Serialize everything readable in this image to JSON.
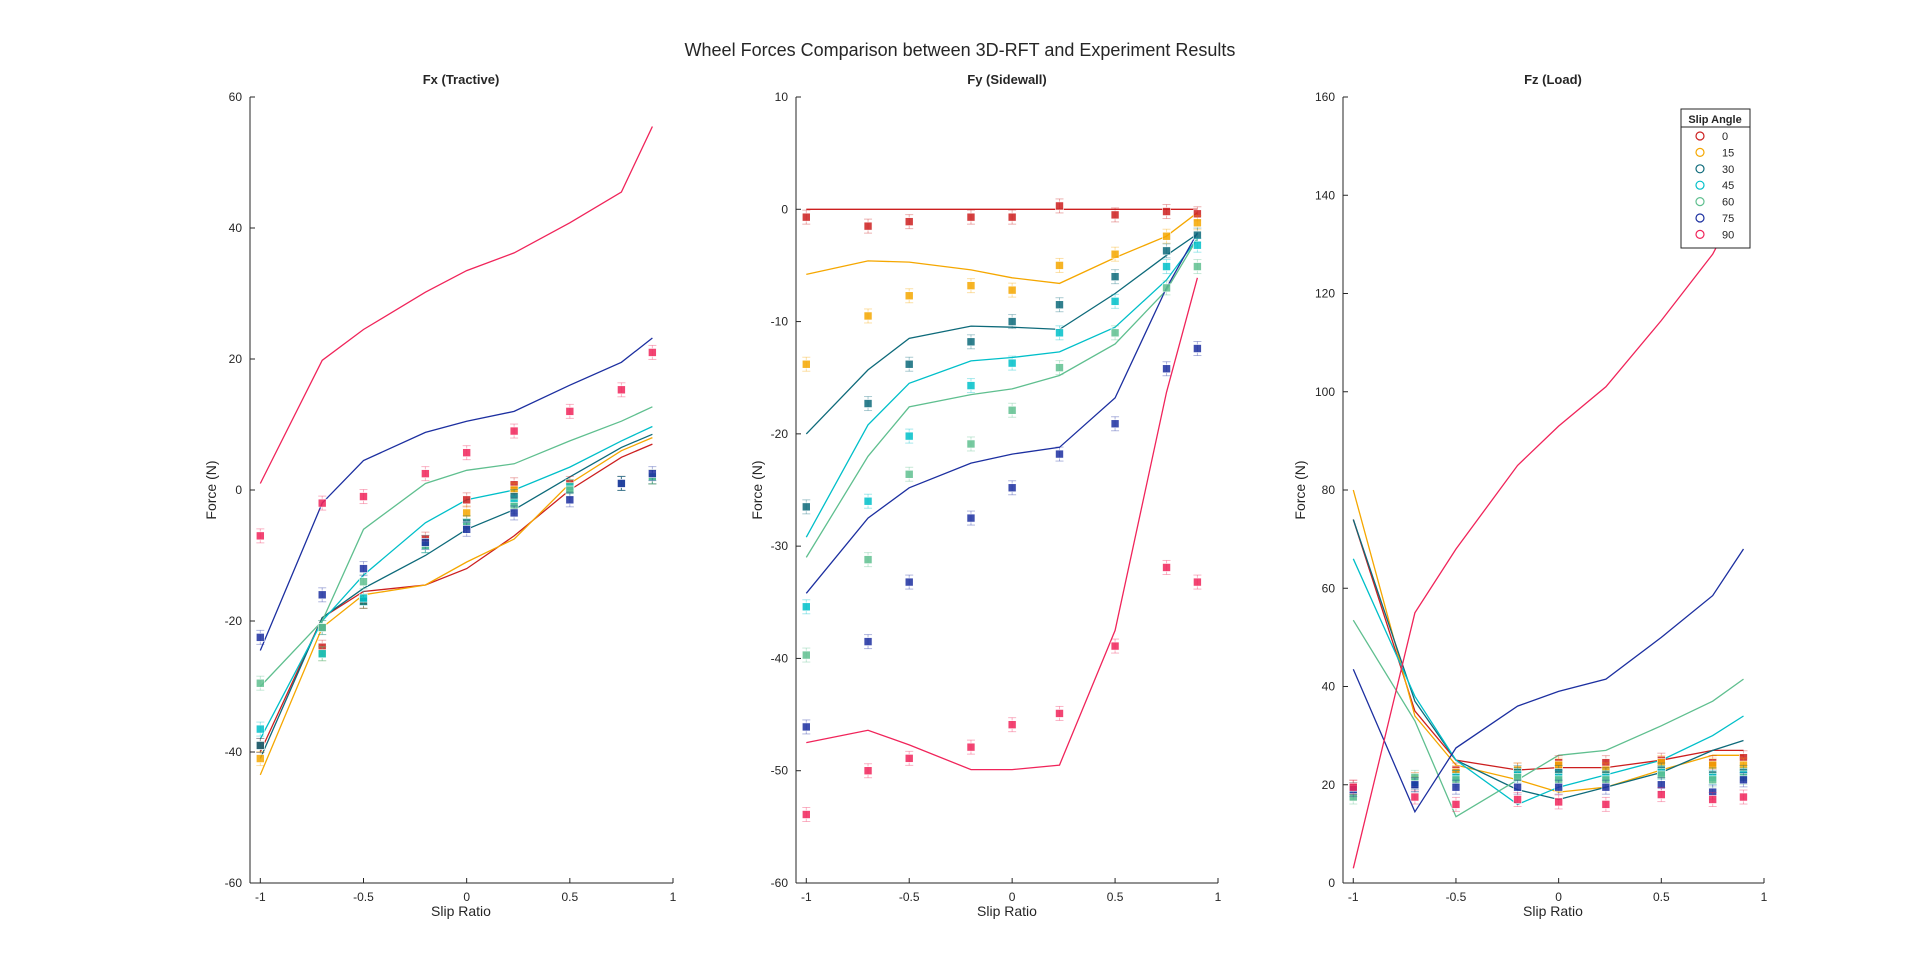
{
  "figure_title": "Wheel Forces Comparison between 3D-RFT and Experiment Results",
  "legend": {
    "title": "Slip Angle",
    "entries": [
      "0",
      "15",
      "30",
      "45",
      "60",
      "75",
      "90"
    ],
    "colors": [
      "#cc1f1f",
      "#f5a700",
      "#0d6a7a",
      "#00bfc9",
      "#5fbf8f",
      "#1c2fa0",
      "#f0245a"
    ],
    "placement": "top-right of third panel"
  },
  "chart_data": [
    {
      "type": "line",
      "title": "Fx (Tractive)",
      "xlabel": "Slip Ratio",
      "ylabel": "Force (N)",
      "xlim": [
        -1.05,
        1
      ],
      "ylim": [
        -60,
        60
      ],
      "xticks": [
        -1,
        -0.5,
        0,
        0.5,
        1
      ],
      "xtick_labels": [
        "-1",
        "-0.5",
        "0",
        "0.5",
        "1"
      ],
      "yticks": [
        -60,
        -40,
        -20,
        0,
        20,
        40,
        60
      ],
      "ytick_labels": [
        "-60",
        "-40",
        "-20",
        "0",
        "20",
        "40",
        "60"
      ],
      "x": [
        -1,
        -0.7,
        -0.5,
        -0.2,
        0,
        0.23,
        0.5,
        0.75,
        0.9
      ],
      "model_series": [
        {
          "name": "0",
          "values": [
            -40,
            -19.5,
            -15.5,
            -14.5,
            -12,
            -7,
            0,
            5,
            7
          ]
        },
        {
          "name": "15",
          "values": [
            -43.5,
            -21,
            -16,
            -14.5,
            -11,
            -7.5,
            1,
            6,
            8
          ]
        },
        {
          "name": "30",
          "values": [
            -41,
            -19.5,
            -15,
            -10,
            -6,
            -3,
            2,
            6.5,
            8.5
          ]
        },
        {
          "name": "45",
          "values": [
            -38,
            -20,
            -13,
            -5,
            -1.5,
            0,
            3.5,
            7.5,
            9.7
          ]
        },
        {
          "name": "60",
          "values": [
            -30,
            -20,
            -6,
            1,
            3,
            4,
            7.5,
            10.5,
            12.7
          ]
        },
        {
          "name": "75",
          "values": [
            -24.5,
            -2,
            4.5,
            8.8,
            10.5,
            12,
            16,
            19.5,
            23.2
          ]
        },
        {
          "name": "90",
          "values": [
            1,
            19.8,
            24.5,
            30.2,
            33.5,
            36.2,
            40.8,
            45.5,
            55.5
          ]
        }
      ],
      "experiment_series": [
        {
          "name": "0",
          "values": [
            -39,
            -24,
            -17,
            -7.5,
            -1.5,
            0.8,
            1,
            1,
            2
          ]
        },
        {
          "name": "15",
          "values": [
            -41,
            -25,
            -17,
            -8,
            -3.5,
            0,
            0.5,
            1,
            2
          ]
        },
        {
          "name": "30",
          "values": [
            -39,
            -21,
            -17,
            -8.5,
            -5,
            -1,
            0,
            1,
            2
          ]
        },
        {
          "name": "45",
          "values": [
            -36.5,
            -25,
            -16.5,
            -8.5,
            -5.5,
            -2,
            0.5,
            1,
            2
          ]
        },
        {
          "name": "60",
          "values": [
            -29.5,
            -21,
            -14,
            -8.5,
            -5.5,
            -2.5,
            0,
            1,
            2
          ]
        },
        {
          "name": "75",
          "values": [
            -22.5,
            -16,
            -12,
            -8,
            -6,
            -3.5,
            -1.5,
            1,
            2.5
          ]
        },
        {
          "name": "90",
          "values": [
            -7,
            -2,
            -1,
            2.5,
            5.7,
            9,
            12,
            15.3,
            21
          ]
        }
      ]
    },
    {
      "type": "line",
      "title": "Fy (Sidewall)",
      "xlabel": "Slip Ratio",
      "ylabel": "Force (N)",
      "xlim": [
        -1.05,
        1
      ],
      "ylim": [
        -60,
        10
      ],
      "xticks": [
        -1,
        -0.5,
        0,
        0.5,
        1
      ],
      "xtick_labels": [
        "-1",
        "-0.5",
        "0",
        "0.5",
        "1"
      ],
      "yticks": [
        -60,
        -50,
        -40,
        -30,
        -20,
        -10,
        0,
        10
      ],
      "ytick_labels": [
        "-60",
        "-50",
        "-40",
        "-30",
        "-20",
        "-10",
        "0",
        "10"
      ],
      "x": [
        -1,
        -0.7,
        -0.5,
        -0.2,
        0,
        0.23,
        0.5,
        0.75,
        0.9
      ],
      "model_series": [
        {
          "name": "0",
          "values": [
            0,
            0,
            0,
            0,
            0,
            0,
            0,
            0,
            0
          ]
        },
        {
          "name": "15",
          "values": [
            -5.8,
            -4.6,
            -4.7,
            -5.4,
            -6.1,
            -6.6,
            -4.3,
            -2.4,
            -0.3
          ]
        },
        {
          "name": "30",
          "values": [
            -20,
            -14.3,
            -11.5,
            -10.4,
            -10.5,
            -10.7,
            -7.5,
            -4.1,
            -2.2
          ]
        },
        {
          "name": "45",
          "values": [
            -29.2,
            -19.2,
            -15.5,
            -13.5,
            -13.2,
            -12.7,
            -10.5,
            -6.3,
            -2.6
          ]
        },
        {
          "name": "60",
          "values": [
            -31,
            -22,
            -17.6,
            -16.5,
            -16,
            -14.8,
            -12,
            -7.2,
            -2.6
          ]
        },
        {
          "name": "75",
          "values": [
            -34.2,
            -27.5,
            -24.8,
            -22.6,
            -21.8,
            -21.2,
            -16.8,
            -7,
            -2.1
          ]
        },
        {
          "name": "90",
          "values": [
            -47.5,
            -46.4,
            -47.7,
            -49.9,
            -49.9,
            -49.5,
            -37.5,
            -16.3,
            -6.1
          ]
        }
      ],
      "experiment_series": [
        {
          "name": "0",
          "values": [
            -0.7,
            -1.5,
            -1.1,
            -0.7,
            -0.7,
            0.3,
            -0.5,
            -0.2,
            -0.4
          ]
        },
        {
          "name": "15",
          "values": [
            -13.8,
            -9.5,
            -7.7,
            -6.8,
            -7.2,
            -5,
            -4,
            -2.4,
            -1.2
          ]
        },
        {
          "name": "30",
          "values": [
            -26.5,
            -17.3,
            -13.8,
            -11.8,
            -10,
            -8.5,
            -6,
            -3.7,
            -2.3
          ]
        },
        {
          "name": "45",
          "values": [
            -35.4,
            -26,
            -20.2,
            -15.7,
            -13.7,
            -11,
            -8.2,
            -5.1,
            -3.2
          ]
        },
        {
          "name": "60",
          "values": [
            -39.7,
            -31.2,
            -23.6,
            -20.9,
            -17.9,
            -14.1,
            -11,
            -7,
            -5.1
          ]
        },
        {
          "name": "75",
          "values": [
            -46.1,
            -38.5,
            -33.2,
            -27.5,
            -24.8,
            -21.8,
            -19.1,
            -14.2,
            -12.4
          ]
        },
        {
          "name": "90",
          "values": [
            -53.9,
            -50,
            -48.9,
            -47.9,
            -45.9,
            -44.9,
            -38.9,
            -31.9,
            -33.2
          ]
        }
      ]
    },
    {
      "type": "line",
      "title": "Fz (Load)",
      "xlabel": "Slip Ratio",
      "ylabel": "Force (N)",
      "xlim": [
        -1.05,
        1
      ],
      "ylim": [
        0,
        160
      ],
      "xticks": [
        -1,
        -0.5,
        0,
        0.5,
        1
      ],
      "xtick_labels": [
        "-1",
        "-0.5",
        "0",
        "0.5",
        "1"
      ],
      "yticks": [
        0,
        20,
        40,
        60,
        80,
        100,
        120,
        140,
        160
      ],
      "ytick_labels": [
        "0",
        "20",
        "40",
        "60",
        "80",
        "100",
        "120",
        "140",
        "160"
      ],
      "x": [
        -1,
        -0.7,
        -0.5,
        -0.2,
        0,
        0.23,
        0.5,
        0.75,
        0.9
      ],
      "model_series": [
        {
          "name": "0",
          "values": [
            74,
            35,
            25,
            23,
            23.5,
            23.5,
            25,
            27,
            27
          ]
        },
        {
          "name": "15",
          "values": [
            80,
            34,
            24,
            21,
            18.5,
            19.5,
            23,
            26,
            26
          ]
        },
        {
          "name": "30",
          "values": [
            74,
            37,
            25,
            19,
            17,
            19.5,
            22.5,
            27,
            29
          ]
        },
        {
          "name": "45",
          "values": [
            66,
            38,
            25,
            16,
            19.5,
            22,
            25,
            30,
            34
          ]
        },
        {
          "name": "60",
          "values": [
            53.5,
            33,
            13.5,
            21,
            26,
            27,
            32,
            37,
            41.5
          ]
        },
        {
          "name": "75",
          "values": [
            43.5,
            14.5,
            27.5,
            36,
            39,
            41.5,
            50,
            58.5,
            68
          ]
        },
        {
          "name": "90",
          "values": [
            3,
            55,
            68,
            85,
            93,
            101,
            114.5,
            128,
            140
          ]
        }
      ],
      "experiment_series": [
        {
          "name": "0",
          "values": [
            19.5,
            21,
            23,
            23,
            24.5,
            24.5,
            25,
            24.5,
            25.5
          ]
        },
        {
          "name": "15",
          "values": [
            19,
            21,
            22.5,
            23,
            24,
            23,
            24.5,
            24,
            24
          ]
        },
        {
          "name": "30",
          "values": [
            18.5,
            20,
            21.5,
            22.5,
            22.5,
            22,
            23,
            22,
            22.5
          ]
        },
        {
          "name": "45",
          "values": [
            18.5,
            20.5,
            21.5,
            22,
            21.5,
            21.5,
            22.5,
            21.5,
            22
          ]
        },
        {
          "name": "60",
          "values": [
            17.5,
            21.5,
            21,
            21.5,
            21,
            21,
            22,
            21,
            21.5
          ]
        },
        {
          "name": "75",
          "values": [
            19,
            20,
            19.5,
            19.5,
            19.5,
            19.5,
            20,
            18.5,
            21
          ]
        },
        {
          "name": "90",
          "values": [
            19.5,
            17.5,
            16,
            17,
            16.5,
            16,
            18,
            17,
            17.5
          ]
        }
      ]
    }
  ]
}
